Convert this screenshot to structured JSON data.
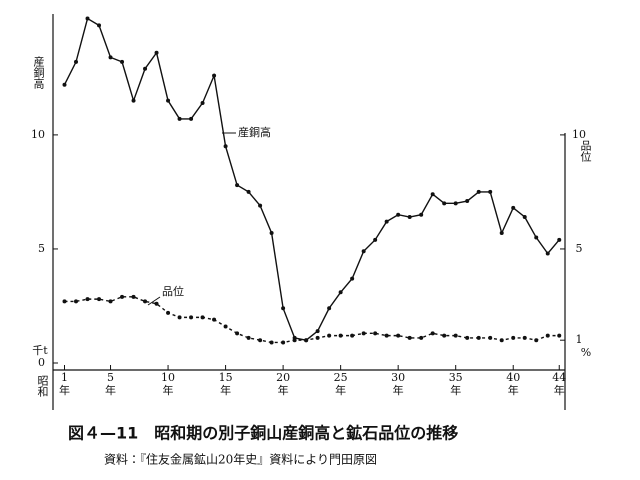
{
  "chart_data": {
    "type": "line",
    "title": "図４—11　昭和期の別子銅山産銅高と鉱石品位の推移",
    "subtitle": "資料：『住友金属鉱山20年史』資料により門田原図",
    "ylabel": "産銅高",
    "y_unit": "千t",
    "y2label": "品位",
    "y2_unit": "%",
    "xlabel": "昭和",
    "x_unit": "年",
    "x": [
      1,
      2,
      3,
      4,
      5,
      6,
      7,
      8,
      9,
      10,
      11,
      12,
      13,
      14,
      15,
      16,
      17,
      18,
      19,
      20,
      21,
      22,
      23,
      24,
      25,
      26,
      27,
      28,
      29,
      30,
      31,
      32,
      33,
      34,
      35,
      36,
      37,
      38,
      39,
      40,
      41,
      42,
      43,
      44
    ],
    "xlim": [
      0,
      44.5
    ],
    "xticks": [
      1,
      5,
      10,
      15,
      20,
      25,
      30,
      35,
      40,
      44
    ],
    "ylim": [
      0,
      15.3
    ],
    "yticks": [
      0,
      5,
      10
    ],
    "y2lim": [
      0,
      15.3
    ],
    "y2ticks": [
      1,
      5,
      10
    ],
    "series": [
      {
        "name": "産銅高",
        "color": "#111111",
        "style": "solid",
        "values": [
          12.2,
          13.2,
          15.1,
          14.8,
          13.4,
          13.2,
          11.5,
          12.9,
          13.6,
          11.5,
          10.7,
          10.7,
          11.4,
          12.6,
          9.5,
          7.8,
          7.5,
          6.9,
          5.7,
          2.4,
          1.1,
          1.0,
          1.4,
          2.4,
          3.1,
          3.7,
          4.9,
          5.4,
          6.2,
          6.5,
          6.4,
          6.5,
          7.4,
          7.0,
          7.0,
          7.1,
          7.5,
          7.5,
          5.7,
          6.8,
          6.4,
          5.5,
          4.8,
          5.4
        ]
      },
      {
        "name": "品位",
        "color": "#111111",
        "style": "dashed",
        "axis": "y2",
        "values": [
          2.7,
          2.7,
          2.8,
          2.8,
          2.7,
          2.9,
          2.9,
          2.7,
          2.6,
          2.2,
          2.0,
          2.0,
          2.0,
          1.9,
          1.6,
          1.3,
          1.1,
          1.0,
          0.9,
          0.9,
          1.0,
          1.0,
          1.1,
          1.2,
          1.2,
          1.2,
          1.3,
          1.3,
          1.2,
          1.2,
          1.1,
          1.1,
          1.3,
          1.2,
          1.2,
          1.1,
          1.1,
          1.1,
          1.0,
          1.1,
          1.1,
          1.0,
          1.2,
          1.2
        ]
      }
    ]
  }
}
